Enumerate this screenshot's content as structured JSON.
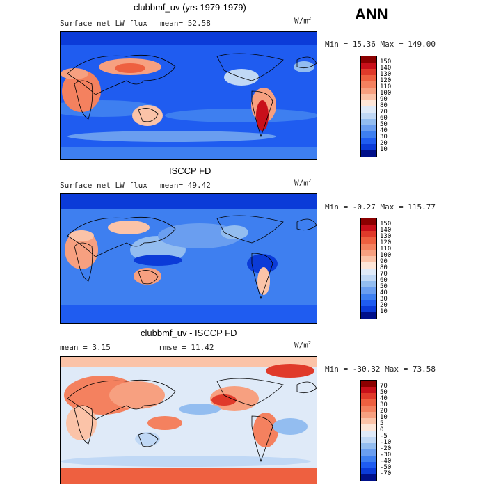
{
  "header": {
    "season": "ANN"
  },
  "panels": [
    {
      "title": "clubbmf_uv (yrs 1979-1979)",
      "variable": "Surface net LW flux",
      "stat": "mean=  52.58",
      "units_base": "W/m",
      "units_exp": "2",
      "range": "Min =  15.36 Max = 149.00",
      "levels": [
        "150",
        "140",
        "130",
        "120",
        "110",
        "100",
        "90",
        "80",
        "70",
        "60",
        "50",
        "40",
        "30",
        "20",
        "10"
      ],
      "colors": [
        "#8b0000",
        "#c8101a",
        "#e03a2a",
        "#ee6040",
        "#f4815f",
        "#f7a080",
        "#fbc3a8",
        "#fde6d8",
        "#dfeaf8",
        "#c0d8f5",
        "#93bdf0",
        "#6a9ef0",
        "#3e7ff0",
        "#1f5cf0",
        "#0b3bd8",
        "#00108a"
      ]
    },
    {
      "title": "ISCCP FD",
      "variable": "Surface net LW flux",
      "stat": "mean=  49.42",
      "units_base": "W/m",
      "units_exp": "2",
      "range": "Min =  -0.27 Max = 115.77",
      "levels": [
        "150",
        "140",
        "130",
        "120",
        "110",
        "100",
        "90",
        "80",
        "70",
        "60",
        "50",
        "40",
        "30",
        "20",
        "10"
      ],
      "colors": [
        "#8b0000",
        "#c8101a",
        "#e03a2a",
        "#ee6040",
        "#f4815f",
        "#f7a080",
        "#fbc3a8",
        "#fde6d8",
        "#dfeaf8",
        "#c0d8f5",
        "#93bdf0",
        "#6a9ef0",
        "#3e7ff0",
        "#1f5cf0",
        "#0b3bd8",
        "#00108a"
      ]
    },
    {
      "title": "clubbmf_uv - ISCCP FD",
      "stat_mean": "mean =    3.15",
      "stat_rmse": "rmse =   11.42",
      "units_base": "W/m",
      "units_exp": "2",
      "range": "Min = -30.32 Max =  73.58",
      "levels": [
        "70",
        "50",
        "40",
        "30",
        "20",
        "10",
        "5",
        "0",
        "-5",
        "-10",
        "-20",
        "-30",
        "-40",
        "-50",
        "-70"
      ],
      "colors": [
        "#8b0000",
        "#c8101a",
        "#e03a2a",
        "#ee6040",
        "#f4815f",
        "#f7a080",
        "#fbc3a8",
        "#fde6d8",
        "#dfeaf8",
        "#c0d8f5",
        "#93bdf0",
        "#6a9ef0",
        "#3e7ff0",
        "#1f5cf0",
        "#0b3bd8",
        "#00108a"
      ]
    }
  ]
}
